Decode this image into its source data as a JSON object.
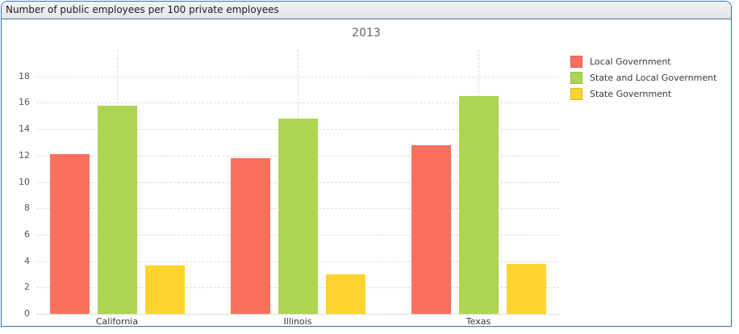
{
  "header": {
    "title": "Number of public employees per 100 private employees"
  },
  "chart_data": {
    "type": "bar",
    "title": "2013",
    "xlabel": "",
    "ylabel": "",
    "categories": [
      "California",
      "Illinois",
      "Texas"
    ],
    "series": [
      {
        "name": "Local Government",
        "color": "#f9705f",
        "border_color": "#dd6154",
        "values": [
          12.1,
          11.8,
          12.8
        ]
      },
      {
        "name": "State and Local Government",
        "color": "#aed552",
        "border_color": "#92bc41",
        "values": [
          15.8,
          14.8,
          16.5
        ]
      },
      {
        "name": "State Government",
        "color": "#ffd42e",
        "border_color": "#e0b524",
        "values": [
          3.7,
          3.0,
          3.8
        ]
      }
    ],
    "ylim": [
      0,
      20
    ],
    "yticks": [
      0,
      2,
      4,
      6,
      8,
      10,
      12,
      14,
      16,
      18
    ],
    "grid": "horizontal dashed + vertical dashed at category centers",
    "legend_position": "right"
  },
  "colors": {
    "panel_border": "#2f76ae",
    "header_background": "#eaeaee",
    "chart_title_color": "#666666",
    "axis_text_color": "#555555",
    "gridline_color": "#dddddd"
  }
}
